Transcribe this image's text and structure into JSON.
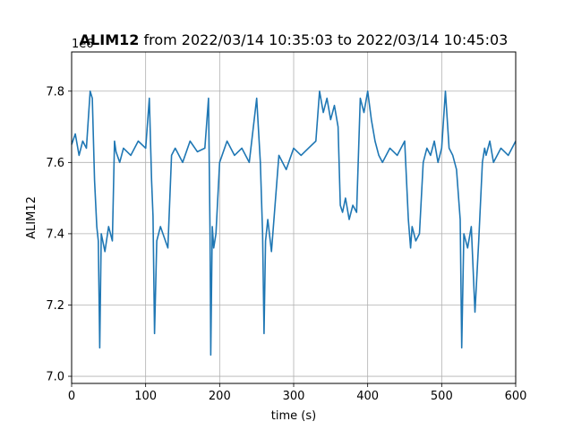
{
  "chart_data": {
    "type": "line",
    "title": {
      "bold_part": "ALIM12",
      "rest": " from 2022/03/14 10:35:03 to 2022/03/14 10:45:03"
    },
    "xlabel": "time (s)",
    "ylabel": "ALIM12",
    "y_offset_label": "1e6",
    "xlim": [
      0,
      600
    ],
    "ylim": [
      6.98,
      7.91
    ],
    "x_ticks": [
      0,
      100,
      200,
      300,
      400,
      500,
      600
    ],
    "y_ticks": [
      7.0,
      7.2,
      7.4,
      7.6,
      7.8
    ],
    "x_tick_labels": [
      "0",
      "100",
      "200",
      "300",
      "400",
      "500",
      "600"
    ],
    "y_tick_labels": [
      "7.0",
      "7.2",
      "7.4",
      "7.6",
      "7.8"
    ],
    "grid": true,
    "line_color": "#1f77b4",
    "series": [
      {
        "x": [
          0,
          5,
          10,
          15,
          20,
          25,
          28,
          31,
          34,
          36,
          38,
          40,
          45,
          50,
          55,
          58,
          60,
          65,
          70,
          80,
          90,
          100,
          105,
          108,
          110,
          112,
          115,
          120,
          130,
          135,
          140,
          150,
          160,
          170,
          180,
          185,
          187,
          188,
          190,
          192,
          195,
          200,
          210,
          220,
          230,
          240,
          250,
          255,
          258,
          260,
          262,
          265,
          270,
          280,
          290,
          300,
          310,
          320,
          330,
          335,
          340,
          345,
          350,
          355,
          360,
          363,
          366,
          370,
          375,
          380,
          385,
          390,
          395,
          400,
          405,
          410,
          415,
          420,
          430,
          440,
          450,
          455,
          458,
          460,
          465,
          470,
          475,
          480,
          485,
          490,
          495,
          500,
          505,
          510,
          515,
          520,
          525,
          527,
          530,
          535,
          540,
          545,
          550,
          555,
          558,
          560,
          565,
          570,
          580,
          590,
          600
        ],
        "y": [
          7.65,
          7.68,
          7.62,
          7.66,
          7.64,
          7.8,
          7.78,
          7.55,
          7.42,
          7.38,
          7.08,
          7.4,
          7.35,
          7.42,
          7.38,
          7.66,
          7.63,
          7.6,
          7.64,
          7.62,
          7.66,
          7.64,
          7.78,
          7.55,
          7.45,
          7.12,
          7.38,
          7.42,
          7.36,
          7.62,
          7.64,
          7.6,
          7.66,
          7.63,
          7.64,
          7.78,
          7.4,
          7.06,
          7.42,
          7.36,
          7.4,
          7.6,
          7.66,
          7.62,
          7.64,
          7.6,
          7.78,
          7.6,
          7.4,
          7.12,
          7.38,
          7.44,
          7.35,
          7.62,
          7.58,
          7.64,
          7.62,
          7.64,
          7.66,
          7.8,
          7.74,
          7.78,
          7.72,
          7.76,
          7.7,
          7.48,
          7.46,
          7.5,
          7.44,
          7.48,
          7.46,
          7.78,
          7.74,
          7.8,
          7.72,
          7.66,
          7.62,
          7.6,
          7.64,
          7.62,
          7.66,
          7.44,
          7.36,
          7.42,
          7.38,
          7.4,
          7.6,
          7.64,
          7.62,
          7.66,
          7.6,
          7.64,
          7.8,
          7.64,
          7.62,
          7.58,
          7.44,
          7.08,
          7.4,
          7.36,
          7.42,
          7.18,
          7.38,
          7.6,
          7.64,
          7.62,
          7.66,
          7.6,
          7.64,
          7.62,
          7.66
        ]
      }
    ]
  }
}
